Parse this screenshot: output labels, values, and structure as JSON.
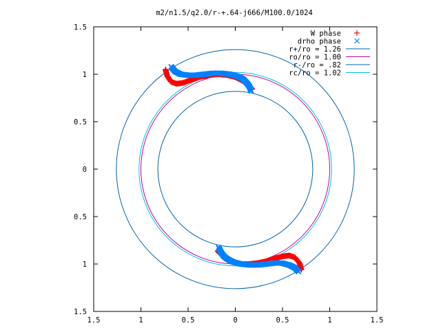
{
  "chart_data": {
    "type": "scatter",
    "title": "m2/n1.5/q2.0/r-+.64-j666/M100.0/1024",
    "xlabel": "",
    "ylabel": "",
    "xlim": [
      -1.5,
      1.5
    ],
    "ylim": [
      -1.5,
      1.5
    ],
    "x_tick_labels": [
      "1.5",
      "1",
      "0.5",
      "0",
      "0.5",
      "1",
      "1.5"
    ],
    "y_tick_labels": [
      "1.5",
      "1",
      "0.5",
      "0",
      "0.5",
      "1",
      "1.5"
    ],
    "grid": false,
    "legend_position": "top-right",
    "series": [
      {
        "name": "W phase",
        "kind": "points",
        "marker": "+",
        "color": "#ff0000",
        "arms": [
          {
            "x": [
              -0.74,
              -0.72,
              -0.68,
              -0.62,
              -0.55,
              -0.47,
              -0.38,
              -0.28,
              -0.18,
              -0.08,
              0.0,
              0.06,
              0.11,
              0.15,
              0.18
            ],
            "y": [
              1.05,
              0.98,
              0.92,
              0.9,
              0.91,
              0.94,
              0.97,
              0.99,
              1.0,
              0.99,
              0.97,
              0.94,
              0.91,
              0.88,
              0.84
            ]
          },
          {
            "x": [
              0.7,
              0.68,
              0.63,
              0.57,
              0.5,
              0.42,
              0.33,
              0.24,
              0.15,
              0.06,
              -0.02,
              -0.08,
              -0.12,
              -0.15,
              -0.19
            ],
            "y": [
              -1.06,
              -0.99,
              -0.93,
              -0.91,
              -0.92,
              -0.94,
              -0.97,
              -0.99,
              -1.0,
              -1.0,
              -0.98,
              -0.96,
              -0.93,
              -0.9,
              -0.86
            ]
          }
        ]
      },
      {
        "name": "drho phase",
        "kind": "points",
        "marker": "x",
        "color": "#0080ff",
        "arms": [
          {
            "x": [
              -0.68,
              -0.64,
              -0.58,
              -0.5,
              -0.42,
              -0.33,
              -0.24,
              -0.15,
              -0.06,
              0.02,
              0.08,
              0.12,
              0.15,
              0.17
            ],
            "y": [
              1.08,
              1.03,
              1.0,
              0.99,
              0.99,
              1.0,
              1.01,
              1.01,
              1.0,
              0.98,
              0.95,
              0.91,
              0.87,
              0.82
            ]
          },
          {
            "x": [
              0.67,
              0.63,
              0.57,
              0.49,
              0.41,
              0.33,
              0.24,
              0.15,
              0.06,
              -0.02,
              -0.08,
              -0.12,
              -0.15,
              -0.18
            ],
            "y": [
              -1.08,
              -1.04,
              -1.01,
              -0.99,
              -0.99,
              -1.0,
              -1.01,
              -1.01,
              -1.0,
              -0.98,
              -0.95,
              -0.92,
              -0.88,
              -0.82
            ]
          }
        ]
      },
      {
        "name": "r+/ro = 1.26",
        "kind": "circle",
        "r": 1.26,
        "color": "#0060ad"
      },
      {
        "name": "ro/ro = 1.00",
        "kind": "circle",
        "r": 1.0,
        "color": "#c000a0"
      },
      {
        "name": "r-/ro = .82",
        "kind": "circle",
        "r": 0.82,
        "color": "#0060ad"
      },
      {
        "name": "rc/ro = 1.02",
        "kind": "circle",
        "r": 1.02,
        "color": "#00c0e0"
      }
    ]
  }
}
